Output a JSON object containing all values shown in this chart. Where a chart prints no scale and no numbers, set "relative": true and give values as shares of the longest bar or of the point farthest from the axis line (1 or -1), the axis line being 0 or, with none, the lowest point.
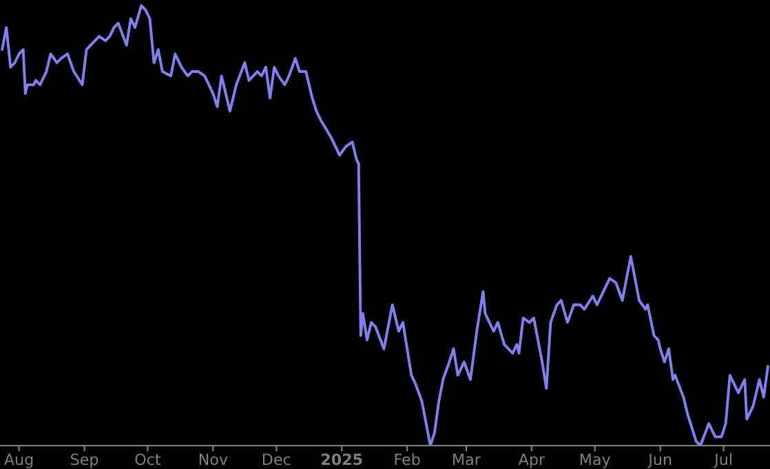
{
  "chart_data": {
    "type": "line",
    "relative": true,
    "xlim": [
      "2024-07-23",
      "2025-07-23"
    ],
    "xticks": [
      {
        "value": "2024-08-01",
        "label": "Aug"
      },
      {
        "value": "2024-09-01",
        "label": "Sep"
      },
      {
        "value": "2024-10-01",
        "label": "Oct"
      },
      {
        "value": "2024-11-01",
        "label": "Nov"
      },
      {
        "value": "2024-12-01",
        "label": "Dec"
      },
      {
        "value": "2025-01-01",
        "label": "2025"
      },
      {
        "value": "2025-02-01",
        "label": "Feb"
      },
      {
        "value": "2025-03-01",
        "label": "Mar"
      },
      {
        "value": "2025-04-01",
        "label": "Apr"
      },
      {
        "value": "2025-05-01",
        "label": "May"
      },
      {
        "value": "2025-06-01",
        "label": "Jun"
      },
      {
        "value": "2025-07-01",
        "label": "Jul"
      }
    ],
    "tick_labels": "x",
    "grid": false,
    "legend": false,
    "series": [
      {
        "color": "#8080f0",
        "x": [
          "2024-07-24",
          "2024-07-26",
          "2024-07-28",
          "2024-07-30",
          "2024-08-01",
          "2024-08-03",
          "2024-08-04",
          "2024-08-05",
          "2024-08-08",
          "2024-08-09",
          "2024-08-11",
          "2024-08-14",
          "2024-08-16",
          "2024-08-19",
          "2024-08-21",
          "2024-08-24",
          "2024-08-27",
          "2024-08-31",
          "2024-09-02",
          "2024-09-04",
          "2024-09-08",
          "2024-09-11",
          "2024-09-13",
          "2024-09-15",
          "2024-09-17",
          "2024-09-21",
          "2024-09-23",
          "2024-09-25",
          "2024-09-28",
          "2024-09-30",
          "2024-10-02",
          "2024-10-04",
          "2024-10-06",
          "2024-10-08",
          "2024-10-12",
          "2024-10-14",
          "2024-10-17",
          "2024-10-20",
          "2024-10-22",
          "2024-10-25",
          "2024-10-28",
          "2024-11-01",
          "2024-11-03",
          "2024-11-05",
          "2024-11-07",
          "2024-11-09",
          "2024-11-12",
          "2024-11-16",
          "2024-11-18",
          "2024-11-22",
          "2024-11-24",
          "2024-11-26",
          "2024-11-28",
          "2024-11-30",
          "2024-12-02",
          "2024-12-05",
          "2024-12-07",
          "2024-12-10",
          "2024-12-12",
          "2024-12-15",
          "2024-12-18",
          "2024-12-20",
          "2024-12-22",
          "2024-12-27",
          "2024-12-31",
          "2025-01-03",
          "2025-01-06",
          "2025-01-08",
          "2025-01-09",
          "2025-01-10",
          "2025-01-11",
          "2025-01-13",
          "2025-01-15",
          "2025-01-17",
          "2025-01-21",
          "2025-01-25",
          "2025-01-28",
          "2025-01-30",
          "2025-02-01",
          "2025-02-03",
          "2025-02-05",
          "2025-02-08",
          "2025-02-10",
          "2025-02-12",
          "2025-02-14",
          "2025-02-16",
          "2025-02-18",
          "2025-02-21",
          "2025-02-23",
          "2025-02-25",
          "2025-02-28",
          "2025-03-03",
          "2025-03-06",
          "2025-03-09",
          "2025-03-10",
          "2025-03-14",
          "2025-03-16",
          "2025-03-19",
          "2025-03-23",
          "2025-03-25",
          "2025-03-26",
          "2025-03-28",
          "2025-03-31",
          "2025-04-02",
          "2025-04-06",
          "2025-04-08",
          "2025-04-10",
          "2025-04-13",
          "2025-04-15",
          "2025-04-18",
          "2025-04-21",
          "2025-04-24",
          "2025-04-26",
          "2025-04-30",
          "2025-05-02",
          "2025-05-04",
          "2025-05-08",
          "2025-05-11",
          "2025-05-14",
          "2025-05-18",
          "2025-05-22",
          "2025-05-25",
          "2025-05-26",
          "2025-05-29",
          "2025-05-31",
          "2025-06-01",
          "2025-06-03",
          "2025-06-05",
          "2025-06-07",
          "2025-06-08",
          "2025-06-12",
          "2025-06-14",
          "2025-06-18",
          "2025-06-20",
          "2025-06-24",
          "2025-06-27",
          "2025-06-30",
          "2025-07-02",
          "2025-07-04",
          "2025-07-07",
          "2025-07-08",
          "2025-07-11",
          "2025-07-12",
          "2025-07-15",
          "2025-07-18",
          "2025-07-20",
          "2025-07-22"
        ],
        "values": [
          0.9,
          0.95,
          0.86,
          0.87,
          0.89,
          0.9,
          0.8,
          0.82,
          0.82,
          0.83,
          0.82,
          0.85,
          0.89,
          0.87,
          0.88,
          0.89,
          0.85,
          0.82,
          0.9,
          0.91,
          0.93,
          0.92,
          0.93,
          0.95,
          0.96,
          0.91,
          0.97,
          0.95,
          1.0,
          0.99,
          0.97,
          0.87,
          0.9,
          0.85,
          0.84,
          0.89,
          0.86,
          0.84,
          0.85,
          0.85,
          0.84,
          0.8,
          0.77,
          0.84,
          0.8,
          0.76,
          0.82,
          0.87,
          0.83,
          0.85,
          0.84,
          0.86,
          0.79,
          0.86,
          0.84,
          0.82,
          0.84,
          0.88,
          0.85,
          0.85,
          0.79,
          0.76,
          0.74,
          0.7,
          0.66,
          0.68,
          0.69,
          0.65,
          0.64,
          0.25,
          0.3,
          0.24,
          0.28,
          0.27,
          0.22,
          0.32,
          0.26,
          0.28,
          0.22,
          0.16,
          0.14,
          0.1,
          0.05,
          0.0,
          0.03,
          0.1,
          0.15,
          0.19,
          0.22,
          0.16,
          0.19,
          0.15,
          0.26,
          0.35,
          0.3,
          0.26,
          0.28,
          0.23,
          0.21,
          0.23,
          0.21,
          0.29,
          0.28,
          0.29,
          0.19,
          0.13,
          0.28,
          0.32,
          0.33,
          0.28,
          0.32,
          0.32,
          0.31,
          0.34,
          0.32,
          0.34,
          0.38,
          0.37,
          0.33,
          0.43,
          0.33,
          0.31,
          0.32,
          0.25,
          0.24,
          0.22,
          0.19,
          0.22,
          0.15,
          0.16,
          0.11,
          0.07,
          0.01,
          0.0,
          0.05,
          0.02,
          0.02,
          0.05,
          0.16,
          0.13,
          0.12,
          0.15,
          0.06,
          0.09,
          0.15,
          0.11,
          0.18
        ]
      }
    ]
  }
}
